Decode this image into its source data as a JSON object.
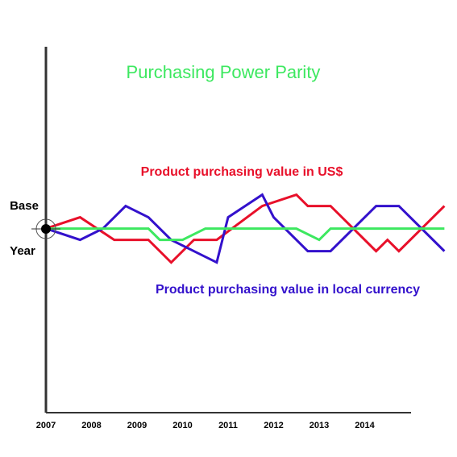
{
  "chart_data": {
    "type": "line",
    "title": "Purchasing Power Parity",
    "title_color": "#3de860",
    "left_labels": [
      "Base",
      "Year"
    ],
    "xlim": [
      2007,
      2015
    ],
    "xticks": [
      2007,
      2008,
      2009,
      2010,
      2011,
      2012,
      2013,
      2014
    ],
    "ylim": [
      -16.3,
      16.1
    ],
    "series": [
      {
        "name": "Product purchasing value in US$",
        "color": "#e8102a",
        "x": [
          2007,
          2007.75,
          2008.5,
          2009.25,
          2009.75,
          2010.25,
          2010.75,
          2011.75,
          2012.5,
          2012.75,
          2013.25,
          2013.75,
          2014.25,
          2014.5,
          2014.75,
          2015.25,
          2015.75
        ],
        "values": [
          0,
          1,
          -1,
          -1,
          -3,
          -1,
          -1,
          2,
          3,
          2,
          2,
          0,
          -2,
          -1,
          -2,
          0,
          2
        ]
      },
      {
        "name": "Product purchasing value in local currency",
        "color": "#3311cc",
        "x": [
          2007,
          2007.75,
          2008.25,
          2008.75,
          2009.25,
          2009.75,
          2010.75,
          2011,
          2011.75,
          2012,
          2012.75,
          2013.25,
          2014.25,
          2014.75,
          2015.75
        ],
        "values": [
          0,
          -1,
          0,
          2,
          1,
          -1,
          -3,
          1,
          3,
          1,
          -2,
          -2,
          2,
          2,
          -2
        ]
      },
      {
        "color": "#3de860",
        "x": [
          2007,
          2009.25,
          2009.5,
          2010,
          2010.5,
          2012.5,
          2013,
          2013.25,
          2015.75
        ],
        "values": [
          0,
          0,
          -1,
          -1,
          0,
          0,
          -1,
          0,
          0
        ]
      }
    ]
  }
}
